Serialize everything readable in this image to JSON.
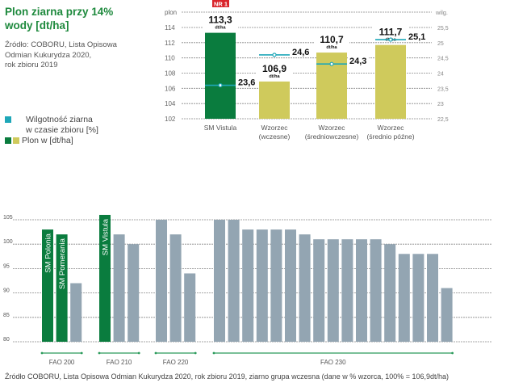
{
  "header": {
    "title_line1": "Plon ziarna przy 14%",
    "title_line2": "wody [dt/ha]",
    "source_lines": [
      "Źródło: COBORU, Lista Opisowa",
      "Odmian Kukurydza 2020,",
      "rok zbioru 2019"
    ]
  },
  "legend": {
    "moisture_line1": "Wilgotność ziarna",
    "moisture_line2": "w czasie zbioru [%]",
    "yield": "Plon w [dt/ha]"
  },
  "colors": {
    "dark_green": "#0a7c3e",
    "light_green": "#cfca5c",
    "teal": "#1ea7b8",
    "grey_bar": "#93a5b2",
    "badge_red": "#d9242b",
    "title_green": "#1f8a3e"
  },
  "footer": "Źródło COBORU, Lista Opisowa Odmian Kukurydza 2020, rok zbioru 2019, ziarno grupa wczesna (dane w % wzorca, 100% = 106,9dt/ha)",
  "chart_data": [
    {
      "type": "bar",
      "title": "Plon ziarna przy 14% wody [dt/ha]",
      "ylabel": "plon",
      "y2label": "wilg.",
      "ylim": [
        102,
        115.2
      ],
      "y2lim": [
        22.5,
        25.8
      ],
      "yticks": [
        102,
        104,
        106,
        108,
        110,
        112,
        114
      ],
      "y2ticks": [
        "22,5",
        "23",
        "23,5",
        "24",
        "24,5",
        "25",
        "25,5"
      ],
      "y2tick_values": [
        22.5,
        23,
        23.5,
        24,
        24.5,
        25,
        25.5
      ],
      "grid": true,
      "categories": [
        [
          "SM Vistula"
        ],
        [
          "Wzorzec",
          "(wczesne)"
        ],
        [
          "Wzorzec",
          "(średniowczesne)"
        ],
        [
          "Wzorzec",
          "(średnio późne)"
        ]
      ],
      "series": [
        {
          "name": "Plon w [dt/ha]",
          "values": [
            113.3,
            106.9,
            110.7,
            111.7
          ],
          "labels": [
            "113,3",
            "106,9",
            "110,7",
            "111,7"
          ],
          "unit": "dt/ha",
          "color_keys": [
            "dark_green",
            "light_green",
            "light_green",
            "light_green"
          ]
        },
        {
          "name": "Wilgotność ziarna w czasie zbioru [%]",
          "values": [
            23.6,
            24.6,
            24.3,
            25.1
          ],
          "labels": [
            "23,6",
            "24,6",
            "24,3",
            "25,1"
          ],
          "axis": "right"
        }
      ],
      "badge": {
        "category_index": 0,
        "text": "NR 1"
      }
    },
    {
      "type": "bar",
      "title": "",
      "ylim": [
        80,
        105
      ],
      "yticks": [
        80,
        85,
        90,
        95,
        100,
        105
      ],
      "grid": true,
      "groups": [
        {
          "label": "FAO 200",
          "values": [
            103,
            102,
            92
          ],
          "names": [
            "SM Polonia",
            "SM Pomerania",
            ""
          ],
          "highlight": [
            true,
            true,
            false
          ]
        },
        {
          "label": "FAO 210",
          "values": [
            106,
            102,
            100
          ],
          "names": [
            "SM Vistula",
            "",
            ""
          ],
          "highlight": [
            true,
            false,
            false
          ]
        },
        {
          "label": "FAO 220",
          "values": [
            105,
            102,
            94
          ],
          "names": [
            "",
            "",
            ""
          ],
          "highlight": [
            false,
            false,
            false
          ]
        },
        {
          "label": "FAO 230",
          "values": [
            105,
            105,
            103,
            103,
            103,
            103,
            102,
            101,
            101,
            101,
            101,
            101,
            100,
            98,
            98,
            98,
            91
          ],
          "names": [],
          "highlight": []
        }
      ]
    }
  ]
}
